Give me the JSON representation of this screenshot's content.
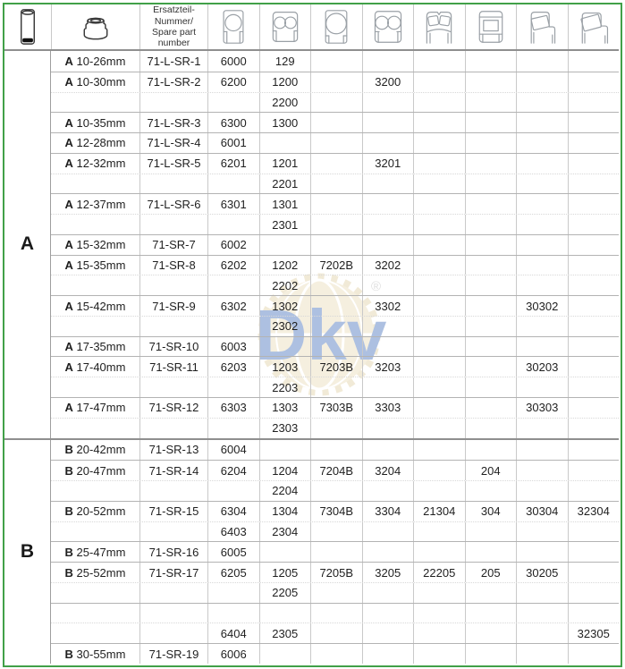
{
  "page": {
    "frame_border_color": "#41a048",
    "background": "#ffffff"
  },
  "header": {
    "spare_part_label": "Ersatzteil-\nNummer/\nSpare part\nnumber",
    "icons": [
      "cylinder-icon",
      "collar-icon",
      "single-row-ball-bearing-icon",
      "double-row-ball-bearing-icon",
      "angular-contact-ball-bearing-icon",
      "double-row-angular-contact-bearing-icon",
      "spherical-roller-bearing-icon",
      "cylindrical-roller-bearing-icon",
      "tapered-roller-bearing-icon",
      "tapered-roller-bearing-wide-icon"
    ]
  },
  "watermark": {
    "text": "Dkv",
    "registered_mark": "®",
    "blue": "#6b8ec9",
    "tan": "#eee3c6"
  },
  "sections": [
    {
      "label": "A",
      "rows": [
        {
          "type": "main",
          "size_bold": "A",
          "size": "10-26mm",
          "part": "71-L-SR-1",
          "cells": [
            "6000",
            "129",
            "",
            "",
            "",
            "",
            "",
            ""
          ]
        },
        {
          "type": "main",
          "size_bold": "A",
          "size": "10-30mm",
          "part": "71-L-SR-2",
          "cells": [
            "6200",
            "1200",
            "",
            "3200",
            "",
            "",
            "",
            ""
          ]
        },
        {
          "type": "sub",
          "size_bold": "",
          "size": "",
          "part": "",
          "cells": [
            "",
            "2200",
            "",
            "",
            "",
            "",
            "",
            ""
          ]
        },
        {
          "type": "main",
          "size_bold": "A",
          "size": "10-35mm",
          "part": "71-L-SR-3",
          "cells": [
            "6300",
            "1300",
            "",
            "",
            "",
            "",
            "",
            ""
          ]
        },
        {
          "type": "main",
          "size_bold": "A",
          "size": "12-28mm",
          "part": "71-L-SR-4",
          "cells": [
            "6001",
            "",
            "",
            "",
            "",
            "",
            "",
            ""
          ]
        },
        {
          "type": "main",
          "size_bold": "A",
          "size": "12-32mm",
          "part": "71-L-SR-5",
          "cells": [
            "6201",
            "1201",
            "",
            "3201",
            "",
            "",
            "",
            ""
          ]
        },
        {
          "type": "sub",
          "size_bold": "",
          "size": "",
          "part": "",
          "cells": [
            "",
            "2201",
            "",
            "",
            "",
            "",
            "",
            ""
          ]
        },
        {
          "type": "main",
          "size_bold": "A",
          "size": "12-37mm",
          "part": "71-L-SR-6",
          "cells": [
            "6301",
            "1301",
            "",
            "",
            "",
            "",
            "",
            ""
          ]
        },
        {
          "type": "sub",
          "size_bold": "",
          "size": "",
          "part": "",
          "cells": [
            "",
            "2301",
            "",
            "",
            "",
            "",
            "",
            ""
          ]
        },
        {
          "type": "main",
          "size_bold": "A",
          "size": "15-32mm",
          "part": "71-SR-7",
          "cells": [
            "6002",
            "",
            "",
            "",
            "",
            "",
            "",
            ""
          ]
        },
        {
          "type": "main",
          "size_bold": "A",
          "size": "15-35mm",
          "part": "71-SR-8",
          "cells": [
            "6202",
            "1202",
            "7202B",
            "3202",
            "",
            "",
            "",
            ""
          ]
        },
        {
          "type": "sub",
          "size_bold": "",
          "size": "",
          "part": "",
          "cells": [
            "",
            "2202",
            "",
            "",
            "",
            "",
            "",
            ""
          ]
        },
        {
          "type": "main",
          "size_bold": "A",
          "size": "15-42mm",
          "part": "71-SR-9",
          "cells": [
            "6302",
            "1302",
            "",
            "3302",
            "",
            "",
            "30302",
            ""
          ]
        },
        {
          "type": "sub",
          "size_bold": "",
          "size": "",
          "part": "",
          "cells": [
            "",
            "2302",
            "",
            "",
            "",
            "",
            "",
            ""
          ]
        },
        {
          "type": "main",
          "size_bold": "A",
          "size": "17-35mm",
          "part": "71-SR-10",
          "cells": [
            "6003",
            "",
            "",
            "",
            "",
            "",
            "",
            ""
          ]
        },
        {
          "type": "main",
          "size_bold": "A",
          "size": "17-40mm",
          "part": "71-SR-11",
          "cells": [
            "6203",
            "1203",
            "7203B",
            "3203",
            "",
            "",
            "30203",
            ""
          ]
        },
        {
          "type": "sub",
          "size_bold": "",
          "size": "",
          "part": "",
          "cells": [
            "",
            "2203",
            "",
            "",
            "",
            "",
            "",
            ""
          ]
        },
        {
          "type": "main",
          "size_bold": "A",
          "size": "17-47mm",
          "part": "71-SR-12",
          "cells": [
            "6303",
            "1303",
            "7303B",
            "3303",
            "",
            "",
            "30303",
            ""
          ]
        },
        {
          "type": "sub",
          "size_bold": "",
          "size": "",
          "part": "",
          "cells": [
            "",
            "2303",
            "",
            "",
            "",
            "",
            "",
            ""
          ]
        }
      ]
    },
    {
      "label": "B",
      "rows": [
        {
          "type": "main",
          "size_bold": "B",
          "size": "20-42mm",
          "part": "71-SR-13",
          "cells": [
            "6004",
            "",
            "",
            "",
            "",
            "",
            "",
            ""
          ]
        },
        {
          "type": "main",
          "size_bold": "B",
          "size": "20-47mm",
          "part": "71-SR-14",
          "cells": [
            "6204",
            "1204",
            "7204B",
            "3204",
            "",
            "204",
            "",
            ""
          ]
        },
        {
          "type": "sub",
          "size_bold": "",
          "size": "",
          "part": "",
          "cells": [
            "",
            "2204",
            "",
            "",
            "",
            "",
            "",
            ""
          ]
        },
        {
          "type": "main",
          "size_bold": "B",
          "size": "20-52mm",
          "part": "71-SR-15",
          "cells": [
            "6304",
            "1304",
            "7304B",
            "3304",
            "21304",
            "304",
            "30304",
            "32304"
          ]
        },
        {
          "type": "sub",
          "size_bold": "",
          "size": "",
          "part": "",
          "cells": [
            "6403",
            "2304",
            "",
            "",
            "",
            "",
            "",
            ""
          ]
        },
        {
          "type": "main",
          "size_bold": "B",
          "size": "25-47mm",
          "part": "71-SR-16",
          "cells": [
            "6005",
            "",
            "",
            "",
            "",
            "",
            "",
            ""
          ]
        },
        {
          "type": "main",
          "size_bold": "B",
          "size": "25-52mm",
          "part": "71-SR-17",
          "cells": [
            "6205",
            "1205",
            "7205B",
            "3205",
            "22205",
            "205",
            "30205",
            ""
          ]
        },
        {
          "type": "sub",
          "size_bold": "",
          "size": "",
          "part": "",
          "cells": [
            "",
            "2205",
            "",
            "",
            "",
            "",
            "",
            ""
          ]
        },
        {
          "type": "main",
          "size_bold": "",
          "size": "",
          "part": "",
          "cells": [
            "",
            "",
            "",
            "",
            "",
            "",
            "",
            ""
          ]
        },
        {
          "type": "sub",
          "size_bold": "",
          "size": "",
          "part": "",
          "cells": [
            "6404",
            "2305",
            "",
            "",
            "",
            "",
            "",
            "32305"
          ]
        },
        {
          "type": "main",
          "size_bold": "B",
          "size": "30-55mm",
          "part": "71-SR-19",
          "cells": [
            "6006",
            "",
            "",
            "",
            "",
            "",
            "",
            ""
          ]
        }
      ]
    }
  ]
}
